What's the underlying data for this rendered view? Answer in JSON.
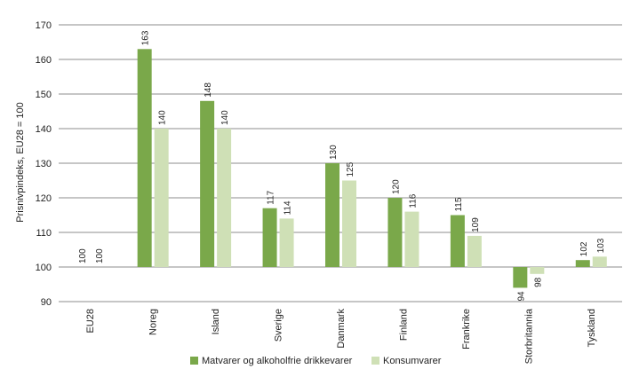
{
  "chart_data": {
    "type": "bar",
    "title": "",
    "xlabel": "",
    "ylabel": "Prisnivpindeks, EU28 = 100",
    "ylim": [
      90,
      170
    ],
    "yticks": [
      90,
      100,
      110,
      120,
      130,
      140,
      150,
      160,
      170
    ],
    "baseline": 100,
    "grid": true,
    "legend_position": "bottom",
    "categories": [
      "EU28",
      "Noreg",
      "Island",
      "Sverige",
      "Danmark",
      "Finland",
      "Frankrike",
      "Storbritannia",
      "Tyskland"
    ],
    "series": [
      {
        "name": "Matvarer og alkoholfrie drikkevarer",
        "color": "#7aa84a",
        "values": [
          100,
          163,
          148,
          117,
          130,
          120,
          115,
          94,
          102
        ]
      },
      {
        "name": "Konsumvarer",
        "color": "#cfe0b6",
        "values": [
          100,
          140,
          140,
          114,
          125,
          116,
          109,
          98,
          103
        ]
      }
    ]
  }
}
